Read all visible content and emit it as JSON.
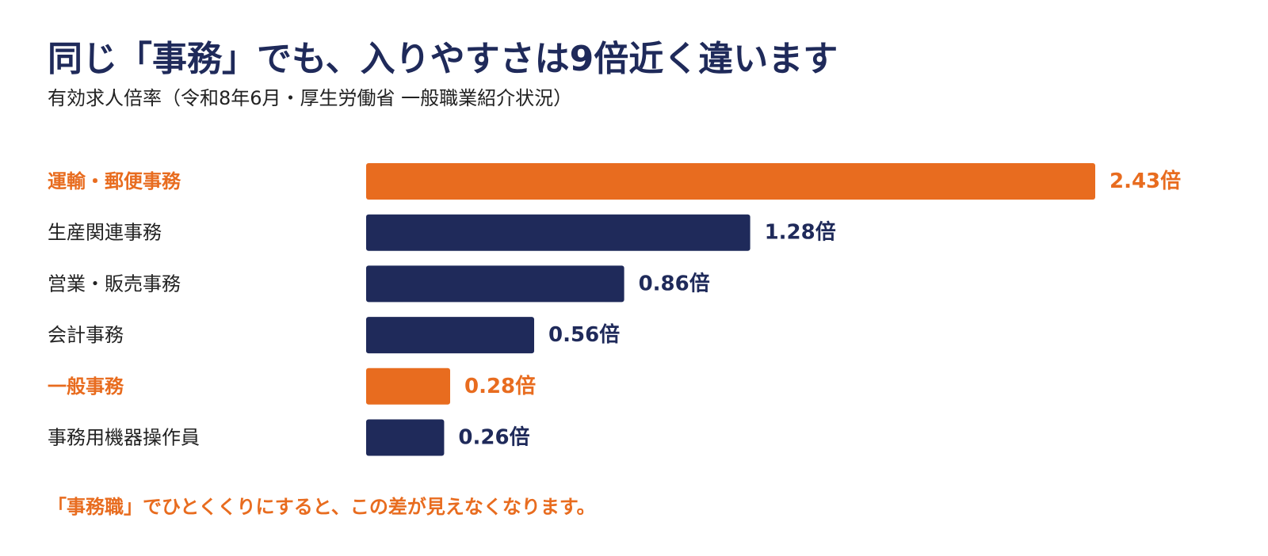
{
  "title": "同じ「事務」でも、入りやすさは9倍近く違います",
  "subtitle": "有効求人倍率（令和8年6月・厚生労働省 一般職業紹介状況）",
  "footnote": "「事務職」でひとくくりにすると、この差が見えなくなります。",
  "colors": {
    "highlight": "#e86c1f",
    "default": "#1f2a5a",
    "label_default": "#222222",
    "footnote": "#e86c1f"
  },
  "chart_data": {
    "type": "bar",
    "orientation": "horizontal",
    "value_suffix": "倍",
    "categories": [
      "運輸・郵便事務",
      "生産関連事務",
      "営業・販売事務",
      "会計事務",
      "一般事務",
      "事務用機器操作員"
    ],
    "values": [
      2.43,
      1.28,
      0.86,
      0.56,
      0.28,
      0.26
    ],
    "value_labels": [
      "2.43倍",
      "1.28倍",
      "0.86倍",
      "0.56倍",
      "0.28倍",
      "0.26倍"
    ],
    "highlighted": [
      true,
      false,
      false,
      false,
      true,
      false
    ],
    "xlim": [
      0,
      2.43
    ],
    "grid": false,
    "legend": "none"
  }
}
